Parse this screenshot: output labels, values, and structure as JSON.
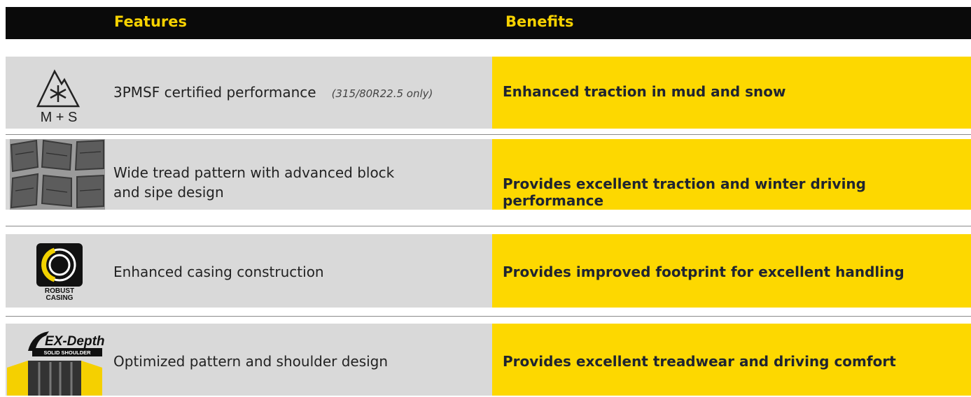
{
  "header": {
    "features": "Features",
    "benefits": "Benefits"
  },
  "rows": [
    {
      "icon_text": [
        "M + S"
      ],
      "feature": [
        "3PMSF certified performance"
      ],
      "note": "(315/80R22.5 only)",
      "benefit": "Enhanced traction in mud and snow"
    },
    {
      "feature": [
        "Wide tread pattern with advanced block",
        "and sipe design"
      ],
      "benefit": "Provides excellent traction and winter driving performance"
    },
    {
      "icon_text": [
        "ROBUST",
        "CASING"
      ],
      "feature": [
        "Enhanced casing construction"
      ],
      "benefit": "Provides improved footprint for excellent handling"
    },
    {
      "icon_text": [
        "EX-Depth",
        "SOLID SHOULDER"
      ],
      "feature": [
        "Optimized pattern and shoulder design"
      ],
      "benefit": "Provides excellent treadwear and driving comfort"
    }
  ]
}
